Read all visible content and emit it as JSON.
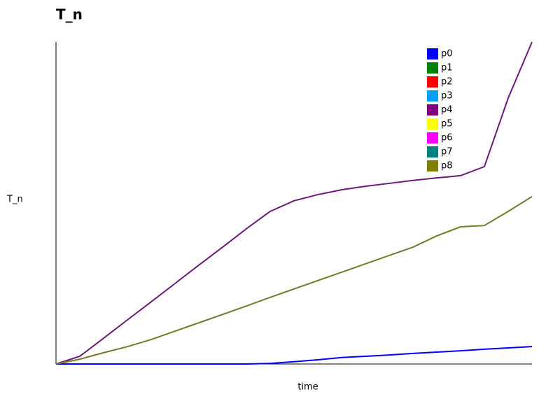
{
  "chart_data": {
    "type": "line",
    "title": "T_n",
    "x_label": "time",
    "y_label": "T_n",
    "x": [
      0,
      5,
      10,
      15,
      20,
      25,
      30,
      35,
      40,
      45,
      50,
      55,
      60,
      65,
      70,
      75,
      80,
      85,
      90,
      95,
      100
    ],
    "xlim": [
      0,
      100
    ],
    "ylim": [
      0,
      100
    ],
    "legend": "upper right",
    "series": [
      {
        "name": "p0",
        "color": "#0000ff",
        "values": [
          0,
          0,
          0,
          0,
          0,
          0,
          0,
          0,
          0,
          0.2,
          0.7,
          1.3,
          2,
          2.4,
          2.8,
          3.3,
          3.7,
          4.1,
          4.6,
          5,
          5.4
        ]
      },
      {
        "name": "p1",
        "color": "#008000"
      },
      {
        "name": "p2",
        "color": "#ff0000"
      },
      {
        "name": "p3",
        "color": "#00a0ff"
      },
      {
        "name": "p4",
        "color": "#6a1a7a",
        "legend_color": "#800080",
        "values": [
          0,
          2.4,
          8,
          13.7,
          19.3,
          25,
          30.7,
          36.3,
          42,
          47.4,
          50.7,
          52.6,
          54.1,
          55.2,
          56.1,
          57,
          57.8,
          58.5,
          61.3,
          82.6,
          100
        ]
      },
      {
        "name": "p5",
        "color": "#ffff00"
      },
      {
        "name": "p6",
        "color": "#ff00ff"
      },
      {
        "name": "p7",
        "color": "#008080"
      },
      {
        "name": "p8",
        "color": "#77772a",
        "legend_color": "#808000",
        "values": [
          0,
          1.5,
          3.5,
          5.4,
          7.6,
          10.2,
          12.8,
          15.4,
          18,
          20.7,
          23.3,
          25.9,
          28.5,
          31.1,
          33.7,
          36.3,
          39.8,
          42.6,
          43,
          47.4,
          52
        ]
      }
    ]
  }
}
